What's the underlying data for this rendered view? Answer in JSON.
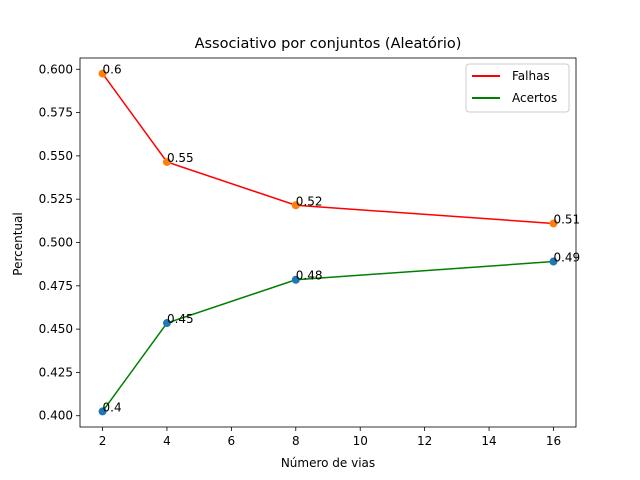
{
  "chart_data": {
    "type": "line",
    "title": "Associativo por conjuntos (Aleatório)",
    "xlabel": "Número de vias",
    "ylabel": "Percentual",
    "x": [
      2,
      4,
      8,
      16
    ],
    "xlim": [
      1.3,
      16.7
    ],
    "ylim": [
      0.3935,
      0.6065
    ],
    "xticks": [
      2,
      4,
      6,
      8,
      10,
      12,
      14,
      16
    ],
    "xtick_labels": [
      "2",
      "4",
      "6",
      "8",
      "10",
      "12",
      "14",
      "16"
    ],
    "yticks": [
      0.4,
      0.425,
      0.45,
      0.475,
      0.5,
      0.525,
      0.55,
      0.575,
      0.6
    ],
    "ytick_labels": [
      "0.400",
      "0.425",
      "0.450",
      "0.475",
      "0.500",
      "0.525",
      "0.550",
      "0.575",
      "0.600"
    ],
    "grid": false,
    "legend_position": "top-right",
    "series": [
      {
        "name": "Falhas",
        "values": [
          0.5975,
          0.5465,
          0.5215,
          0.511
        ],
        "labels": [
          "0.6",
          "0.55",
          "0.52",
          "0.51"
        ],
        "line_color": "#ff0000",
        "marker_color": "#ff7f0e"
      },
      {
        "name": "Acertos",
        "values": [
          0.4025,
          0.4535,
          0.4785,
          0.489
        ],
        "labels": [
          "0.4",
          "0.45",
          "0.48",
          "0.49"
        ],
        "line_color": "#008000",
        "marker_color": "#1f77b4"
      }
    ]
  }
}
